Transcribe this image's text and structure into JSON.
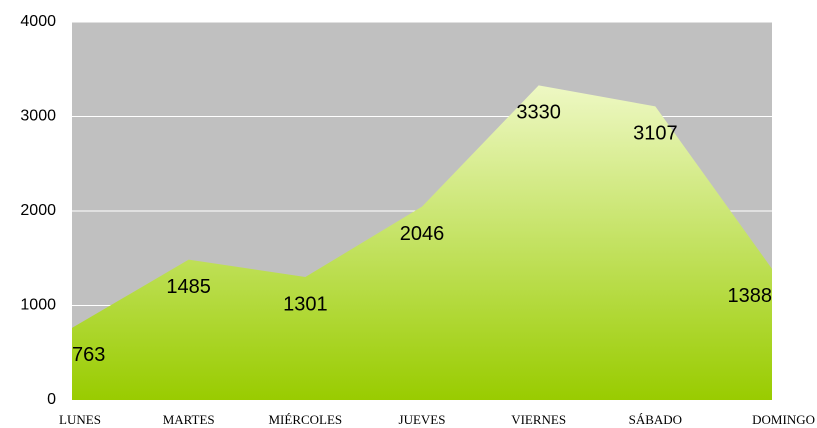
{
  "chart_data": {
    "type": "area",
    "categories": [
      "LUNES",
      "MARTES",
      "MIÉRCOLES",
      "JUEVES",
      "VIERNES",
      "SÁBADO",
      "DOMINGO"
    ],
    "values": [
      763,
      1485,
      1301,
      2046,
      3330,
      3107,
      1388
    ],
    "ylim": [
      0,
      4000
    ],
    "yticks": [
      0,
      1000,
      2000,
      3000,
      4000
    ],
    "grid": true,
    "color": "#99cc00"
  }
}
